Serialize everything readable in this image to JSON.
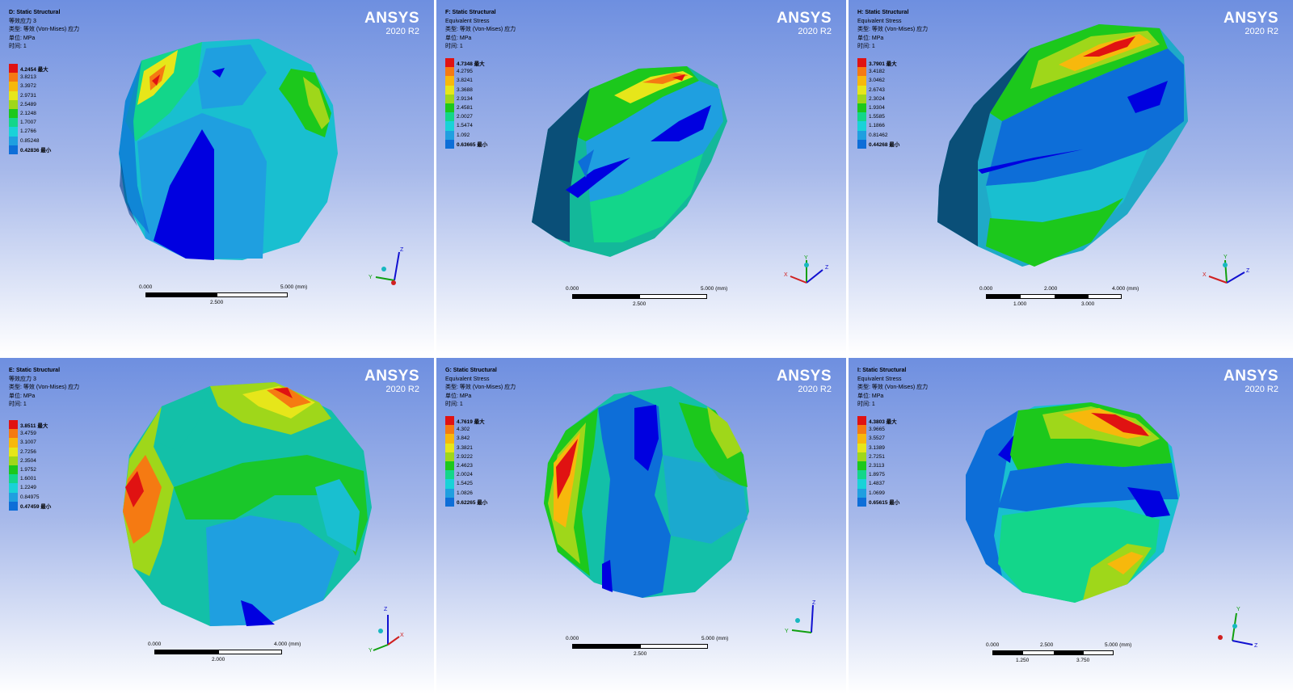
{
  "brand": "ANSYS",
  "version": "2020 R2",
  "palette": [
    "#0000e0",
    "#0d6ed8",
    "#1f9fe0",
    "#19d2d8",
    "#13d68a",
    "#1cc81c",
    "#9fd71a",
    "#e6e61a",
    "#f7b80c",
    "#f57a12",
    "#e01212"
  ],
  "panels": [
    {
      "id": "D",
      "header": [
        "D: Static Structural",
        "等效应力 3",
        "类型: 等效 (Von-Mises) 应力",
        "单位: MPa",
        "时间: 1"
      ],
      "legend": [
        "4.2454 最大",
        "3.8213",
        "3.3972",
        "2.9731",
        "2.5489",
        "2.1248",
        "1.7007",
        "1.2766",
        "0.85248",
        "0.42836 最小"
      ],
      "scale": {
        "left": "0.000",
        "right": "5.000 (mm)",
        "bottom": [
          "2.500"
        ]
      },
      "triad": [
        "Z",
        "Y"
      ]
    },
    {
      "id": "F",
      "header": [
        "F: Static Structural",
        "Equivalent Stress",
        "类型: 等效 (Von-Mises) 应力",
        "单位: MPa",
        "时间: 1"
      ],
      "legend": [
        "4.7348 最大",
        "4.2795",
        "3.8241",
        "3.3688",
        "2.9134",
        "2.4581",
        "2.0027",
        "1.5474",
        "1.092",
        "0.63665 最小"
      ],
      "scale": {
        "left": "0.000",
        "right": "5.000 (mm)",
        "bottom": [
          "2.500"
        ]
      },
      "triad": [
        "Y",
        "Z",
        "X"
      ]
    },
    {
      "id": "H",
      "header": [
        "H: Static Structural",
        "Equivalent Stress",
        "类型: 等效 (Von-Mises) 应力",
        "单位: MPa",
        "时间: 1"
      ],
      "legend": [
        "3.7901 最大",
        "3.4182",
        "3.0462",
        "2.6743",
        "2.3024",
        "1.9304",
        "1.5585",
        "1.1866",
        "0.81462",
        "0.44268 最小"
      ],
      "scale": {
        "left": "0.000",
        "mid": "2.000",
        "right": "4.000 (mm)",
        "bottom": [
          "1.000",
          "3.000"
        ]
      },
      "triad": [
        "Y",
        "Z",
        "X"
      ]
    },
    {
      "id": "E",
      "header": [
        "E: Static Structural",
        "等效应力 3",
        "类型: 等效 (Von-Mises) 应力",
        "单位: MPa",
        "时间: 1"
      ],
      "legend": [
        "3.8511 最大",
        "3.4759",
        "3.1007",
        "2.7256",
        "2.3504",
        "1.9752",
        "1.6001",
        "1.2249",
        "0.84975",
        "0.47459 最小"
      ],
      "scale": {
        "left": "0.000",
        "right": "4.000 (mm)",
        "bottom": [
          "2.000"
        ]
      },
      "triad": [
        "Z",
        "X",
        "Y"
      ]
    },
    {
      "id": "G",
      "header": [
        "G: Static Structural",
        "Equivalent Stress",
        "类型: 等效 (Von-Mises) 应力",
        "单位: MPa",
        "时间: 1"
      ],
      "legend": [
        "4.7619 最大",
        "4.302",
        "3.842",
        "3.3821",
        "2.9222",
        "2.4623",
        "2.0024",
        "1.5425",
        "1.0826",
        "0.62265 最小"
      ],
      "scale": {
        "left": "0.000",
        "right": "5.000 (mm)",
        "bottom": [
          "2.500"
        ]
      },
      "triad": [
        "Z",
        "Y"
      ]
    },
    {
      "id": "I",
      "header": [
        "I: Static Structural",
        "Equivalent Stress",
        "类型: 等效 (Von-Mises) 应力",
        "单位: MPa",
        "时间: 1"
      ],
      "legend": [
        "4.3803 最大",
        "3.9665",
        "3.5527",
        "3.1389",
        "2.7251",
        "2.3113",
        "1.8975",
        "1.4837",
        "1.0699",
        "0.65615 最小"
      ],
      "scale": {
        "left": "0.000",
        "mid": "2.500",
        "right": "5.000 (mm)",
        "bottom": [
          "1.250",
          "3.750"
        ]
      },
      "triad": [
        "Y",
        "Z"
      ]
    }
  ]
}
